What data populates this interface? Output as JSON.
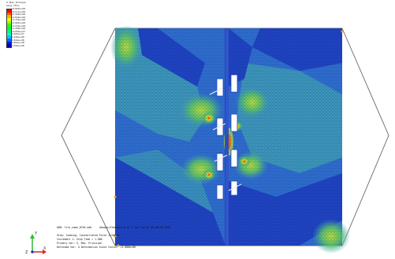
{
  "legend": {
    "title_line1": "S, Max. Principal",
    "title_line2": "(Avg: 75%)",
    "colors": [
      "#ff0000",
      "#ff5a00",
      "#ffb400",
      "#ebff00",
      "#8cff00",
      "#32ff00",
      "#00ff28",
      "#00ff82",
      "#00ffdc",
      "#00c8ff",
      "#006eff",
      "#0014ff",
      "#0000b4"
    ],
    "values": [
      "+6.903e+08",
      "+6.111e+08",
      "+5.318e+08",
      "+4.526e+08",
      "+3.734e+08",
      "+2.942e+08",
      "+2.150e+08",
      "+1.358e+08",
      "+5.659e+07",
      "-2.262e+07",
      "-1.018e+08",
      "-1.810e+08",
      "-2.602e+08",
      "-3.394e+08"
    ]
  },
  "status": {
    "odb_line": "ODB: file_name_8f56.odb",
    "odb_suffix": "Abaqus/Standard 6.14-1 Tue Jan 01 00:00:00 2019",
    "step_line": "Step: loading, Concentrated Force 1=200 N",
    "increment_line": "Increment    1: Step Time =    1.000",
    "primary_var_line": "Primary Var: S, Max. Principal",
    "deformed_var_line": "Deformed Var: U   Deformation Scale Factor: +1.000e+00"
  },
  "triad": {
    "y_label": "Y",
    "z_label": "Z",
    "x_label": "X"
  },
  "colors": {
    "background": "#ffffff",
    "deep_blue": "#1f44c4",
    "mid_blue": "#2f6fd0",
    "teal": "#3fa0b8",
    "green": "#5ec46a",
    "yellow_green": "#b8e040",
    "red": "#e03020",
    "outline": "#6e6660"
  }
}
